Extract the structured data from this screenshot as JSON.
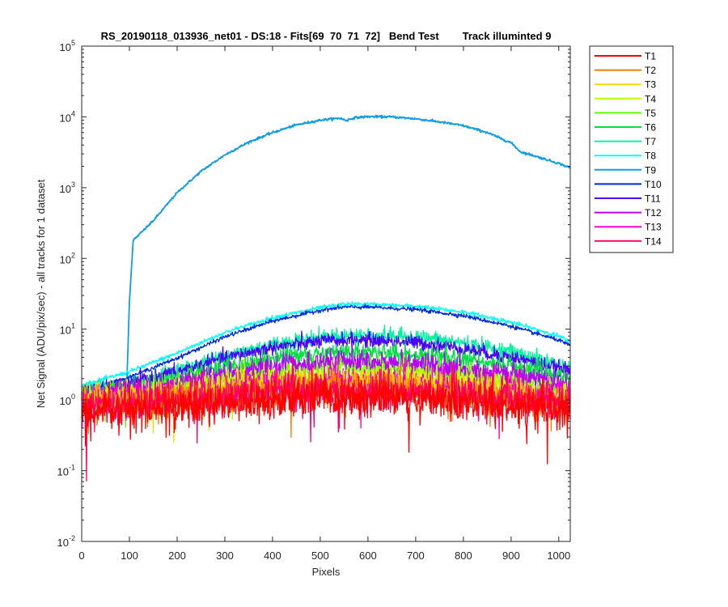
{
  "chart_data": {
    "type": "line",
    "title": "RS_20190118_013936_net01 - DS:18 - Fits[69  70  71  72]   Bend Test        Track illuminted 9",
    "xlabel": "Pixels",
    "ylabel": "Net Signal (ADU/pix/sec) - all tracks for 1 dataset",
    "xlim": [
      0,
      1024
    ],
    "ylim": [
      0.01,
      100000
    ],
    "yscale": "log",
    "x_ticks": [
      0,
      100,
      200,
      300,
      400,
      500,
      600,
      700,
      800,
      900,
      1000
    ],
    "y_ticks": [
      0.01,
      0.1,
      1,
      10,
      100,
      1000,
      10000,
      100000
    ],
    "y_tick_labels": [
      {
        "base": "10",
        "exp": "-2"
      },
      {
        "base": "10",
        "exp": "-1"
      },
      {
        "base": "10",
        "exp": "0"
      },
      {
        "base": "10",
        "exp": "1"
      },
      {
        "base": "10",
        "exp": "2"
      },
      {
        "base": "10",
        "exp": "3"
      },
      {
        "base": "10",
        "exp": "4"
      },
      {
        "base": "10",
        "exp": "5"
      }
    ],
    "legend_position": "outside-top-right",
    "series": [
      {
        "name": "T1",
        "color": "#ff0000",
        "noise": 0.7,
        "x": [
          0,
          100,
          200,
          300,
          400,
          500,
          550,
          600,
          700,
          800,
          900,
          1000,
          1024
        ],
        "y": [
          0.7,
          0.75,
          0.8,
          0.9,
          1.0,
          1.1,
          1.1,
          1.1,
          1.05,
          0.95,
          0.85,
          0.75,
          0.7
        ]
      },
      {
        "name": "T2",
        "color": "#ff7b00",
        "noise": 0.55,
        "x": [
          0,
          100,
          200,
          300,
          400,
          500,
          550,
          600,
          700,
          800,
          900,
          1000,
          1024
        ],
        "y": [
          0.8,
          0.9,
          1.0,
          1.15,
          1.3,
          1.4,
          1.4,
          1.4,
          1.35,
          1.2,
          1.05,
          0.9,
          0.85
        ]
      },
      {
        "name": "T3",
        "color": "#ffd500",
        "noise": 0.5,
        "x": [
          0,
          100,
          200,
          300,
          400,
          500,
          550,
          600,
          700,
          800,
          900,
          1000,
          1024
        ],
        "y": [
          0.9,
          1.0,
          1.15,
          1.35,
          1.55,
          1.7,
          1.75,
          1.75,
          1.65,
          1.45,
          1.25,
          1.05,
          1.0
        ]
      },
      {
        "name": "T4",
        "color": "#b8ff00",
        "noise": 0.42,
        "x": [
          0,
          100,
          200,
          300,
          400,
          500,
          550,
          600,
          700,
          800,
          900,
          1000,
          1024
        ],
        "y": [
          1.0,
          1.15,
          1.35,
          1.7,
          2.0,
          2.2,
          2.25,
          2.25,
          2.1,
          1.85,
          1.55,
          1.25,
          1.15
        ]
      },
      {
        "name": "T5",
        "color": "#5dff00",
        "noise": 0.38,
        "x": [
          0,
          100,
          200,
          300,
          400,
          500,
          550,
          600,
          700,
          800,
          900,
          1000,
          1024
        ],
        "y": [
          1.1,
          1.3,
          1.6,
          2.1,
          2.6,
          2.9,
          3.0,
          3.0,
          2.8,
          2.4,
          1.95,
          1.5,
          1.4
        ]
      },
      {
        "name": "T6",
        "color": "#00e040",
        "noise": 0.32,
        "x": [
          0,
          100,
          200,
          300,
          400,
          500,
          550,
          600,
          700,
          800,
          900,
          1000,
          1024
        ],
        "y": [
          1.2,
          1.5,
          2.0,
          2.9,
          3.9,
          4.6,
          4.8,
          4.8,
          4.5,
          3.8,
          3.0,
          2.2,
          2.0
        ]
      },
      {
        "name": "T7",
        "color": "#00f5a0",
        "noise": 0.27,
        "x": [
          0,
          100,
          200,
          300,
          400,
          500,
          550,
          600,
          700,
          800,
          900,
          1000,
          1024
        ],
        "y": [
          1.3,
          1.7,
          2.6,
          4.2,
          6.2,
          7.8,
          8.2,
          8.3,
          7.8,
          6.4,
          4.8,
          3.2,
          2.8
        ]
      },
      {
        "name": "T8",
        "color": "#00ffff",
        "noise": 0.08,
        "x": [
          0,
          100,
          200,
          300,
          400,
          500,
          550,
          600,
          700,
          800,
          900,
          1000,
          1024
        ],
        "y": [
          1.6,
          2.5,
          4.6,
          9.0,
          14.5,
          20.0,
          22.5,
          22.5,
          21.0,
          17.5,
          12.5,
          8.0,
          6.5
        ]
      },
      {
        "name": "T9",
        "color": "#0f9ce8",
        "noise": 0.04,
        "x": [
          0,
          50,
          95,
          100,
          108,
          150,
          200,
          250,
          300,
          350,
          400,
          450,
          500,
          540,
          555,
          570,
          600,
          650,
          700,
          750,
          800,
          850,
          900,
          920,
          950,
          1000,
          1024
        ],
        "y": [
          1.5,
          1.7,
          2.0,
          25,
          180,
          340,
          850,
          1700,
          2900,
          4400,
          6000,
          7700,
          9000,
          9600,
          8900,
          9700,
          10100,
          10000,
          9400,
          8500,
          7500,
          6000,
          4300,
          3200,
          2800,
          2200,
          1900
        ]
      },
      {
        "name": "T10",
        "color": "#0028e0",
        "noise": 0.07,
        "x": [
          0,
          100,
          200,
          300,
          400,
          500,
          550,
          600,
          700,
          800,
          900,
          1000,
          1024
        ],
        "y": [
          1.3,
          2.1,
          3.9,
          7.8,
          13.0,
          18.5,
          20.5,
          20.5,
          19.0,
          15.5,
          11.0,
          7.0,
          5.8
        ]
      },
      {
        "name": "T11",
        "color": "#4b00ff",
        "noise": 0.25,
        "x": [
          0,
          100,
          200,
          300,
          400,
          500,
          550,
          600,
          700,
          800,
          900,
          1000,
          1024
        ],
        "y": [
          1.25,
          1.7,
          2.5,
          3.9,
          5.5,
          6.7,
          7.0,
          7.0,
          6.5,
          5.3,
          4.0,
          2.8,
          2.5
        ]
      },
      {
        "name": "T12",
        "color": "#b800ff",
        "noise": 0.4,
        "x": [
          0,
          100,
          200,
          300,
          400,
          500,
          550,
          600,
          700,
          800,
          900,
          1000,
          1024
        ],
        "y": [
          1.1,
          1.3,
          1.7,
          2.3,
          2.9,
          3.3,
          3.4,
          3.4,
          3.2,
          2.8,
          2.3,
          1.8,
          1.6
        ]
      },
      {
        "name": "T13",
        "color": "#ff00d0",
        "noise": 0.6,
        "x": [
          0,
          100,
          200,
          300,
          400,
          500,
          550,
          600,
          700,
          800,
          900,
          1000,
          1024
        ],
        "y": [
          0.95,
          1.05,
          1.2,
          1.4,
          1.6,
          1.75,
          1.8,
          1.8,
          1.7,
          1.5,
          1.3,
          1.1,
          1.05
        ]
      },
      {
        "name": "T14",
        "color": "#ff0066",
        "noise": 0.65,
        "x": [
          0,
          100,
          200,
          300,
          400,
          500,
          550,
          600,
          700,
          800,
          900,
          1000,
          1024
        ],
        "y": [
          0.8,
          0.9,
          1.0,
          1.1,
          1.2,
          1.3,
          1.3,
          1.3,
          1.25,
          1.15,
          1.05,
          0.95,
          0.9
        ]
      }
    ]
  }
}
